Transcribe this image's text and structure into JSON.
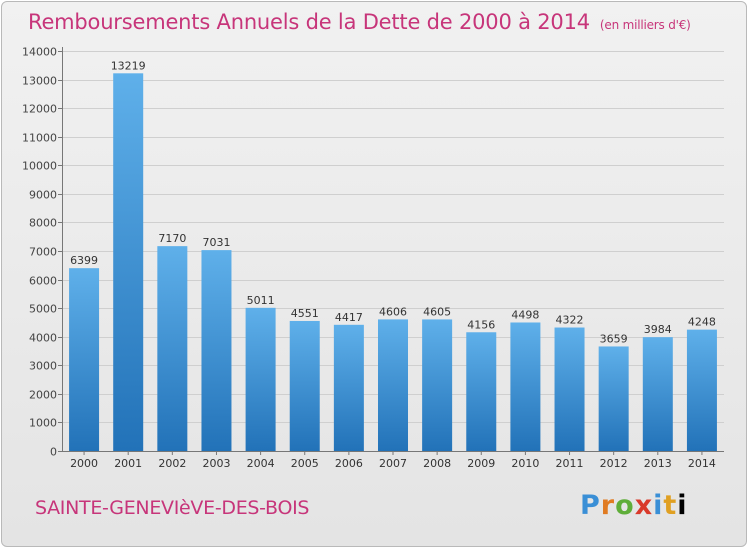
{
  "header": {
    "title": "Remboursements Annuels de la Dette de 2000 à 2014",
    "subtitle": "(en milliers d'€)"
  },
  "footer": {
    "city": "SAINTE-GENEVIèVE-DES-BOIS",
    "logo_letters": [
      "P",
      "r",
      "o",
      "x",
      "i",
      "t",
      "i"
    ]
  },
  "colors": {
    "accent": "#c7357a",
    "bar_top": "#5fb0ea",
    "bar_bottom": "#2272b8"
  },
  "chart_data": {
    "type": "bar",
    "title": "Remboursements Annuels de la Dette de 2000 à 2014",
    "xlabel": "",
    "ylabel": "",
    "categories": [
      "2000",
      "2001",
      "2002",
      "2003",
      "2004",
      "2005",
      "2006",
      "2007",
      "2008",
      "2009",
      "2010",
      "2011",
      "2012",
      "2013",
      "2014"
    ],
    "values": [
      6399,
      13219,
      7170,
      7031,
      5011,
      4551,
      4417,
      4606,
      4605,
      4156,
      4498,
      4322,
      3659,
      3984,
      4248
    ],
    "ylim": [
      0,
      14000
    ],
    "yticks": [
      0,
      1000,
      2000,
      3000,
      4000,
      5000,
      6000,
      7000,
      8000,
      9000,
      10000,
      11000,
      12000,
      13000,
      14000
    ],
    "grid": true
  }
}
